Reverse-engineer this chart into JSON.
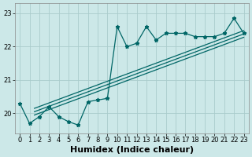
{
  "xlabel": "Humidex (Indice chaleur)",
  "ylabel": "",
  "bg_color": "#cce8e8",
  "grid_color": "#aacccc",
  "line_color": "#006666",
  "xlim": [
    -0.5,
    23.5
  ],
  "ylim": [
    19.4,
    23.3
  ],
  "xticks": [
    0,
    1,
    2,
    3,
    4,
    5,
    6,
    7,
    8,
    9,
    10,
    11,
    12,
    13,
    14,
    15,
    16,
    17,
    18,
    19,
    20,
    21,
    22,
    23
  ],
  "yticks": [
    20,
    21,
    22,
    23
  ],
  "zigzag_y": [
    20.3,
    19.7,
    19.9,
    20.2,
    19.9,
    19.75,
    19.65,
    20.35,
    20.4,
    20.45,
    22.6,
    22.0,
    22.1,
    22.6,
    22.2,
    22.4,
    22.4,
    22.4,
    22.3,
    22.3,
    22.3,
    22.4,
    22.85,
    22.4
  ],
  "straight_lines": [
    {
      "x0": 1.5,
      "y0": 19.95,
      "x1": 23,
      "y1": 22.28
    },
    {
      "x0": 1.5,
      "y0": 20.05,
      "x1": 23,
      "y1": 22.38
    },
    {
      "x0": 1.5,
      "y0": 20.15,
      "x1": 23,
      "y1": 22.48
    }
  ],
  "axis_fontsize": 7,
  "tick_fontsize": 6,
  "xlabel_fontsize": 8
}
